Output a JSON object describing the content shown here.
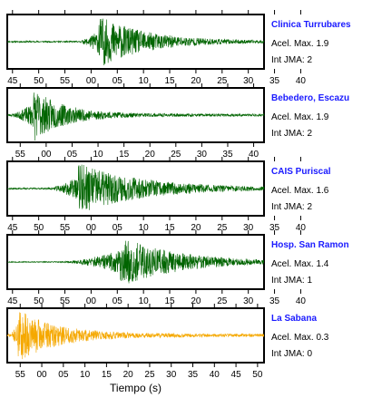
{
  "chart_data": [
    {
      "type": "line",
      "station": "Clinica Turrubares",
      "accel_label": "Acel. Max. 1.9",
      "jma_label": "Int JMA: 2",
      "color": "#006400",
      "ticks": [
        "45",
        "50",
        "55",
        "00",
        "05",
        "10",
        "15",
        "20",
        "25",
        "30",
        "35",
        "40"
      ],
      "tick_start": 45,
      "x_range": [
        44,
        93
      ],
      "onset": 57.5,
      "peak": 61.5,
      "decay": 9,
      "noise": 0.03,
      "seed": 11
    },
    {
      "type": "line",
      "station": "Bebedero, Escazu",
      "accel_label": "Acel. Max. 1.9",
      "jma_label": "Int JMA: 2",
      "color": "#006400",
      "ticks": [
        "55",
        "00",
        "05",
        "10",
        "15",
        "20",
        "25",
        "30",
        "35",
        "40"
      ],
      "tick_start": 55,
      "x_range": [
        52.5,
        102
      ],
      "onset": 53,
      "peak": 57.5,
      "decay": 6,
      "noise": 0.05,
      "seed": 23
    },
    {
      "type": "line",
      "station": "CAIS Puriscal",
      "accel_label": "Acel. Max. 1.6",
      "jma_label": "Int JMA: 2",
      "color": "#006400",
      "ticks": [
        "45",
        "50",
        "55",
        "00",
        "05",
        "10",
        "15",
        "20",
        "25",
        "30",
        "35",
        "40"
      ],
      "tick_start": 45,
      "x_range": [
        44,
        93
      ],
      "onset": 51.5,
      "peak": 57.5,
      "decay": 12,
      "noise": 0.03,
      "seed": 37
    },
    {
      "type": "line",
      "station": "Hosp. San Ramon",
      "accel_label": "Acel. Max. 1.4",
      "jma_label": "Int JMA: 1",
      "color": "#006400",
      "ticks": [
        "45",
        "50",
        "55",
        "00",
        "05",
        "10",
        "15",
        "20",
        "25",
        "30",
        "35",
        "40"
      ],
      "tick_start": 45,
      "x_range": [
        44,
        93
      ],
      "onset": 54.5,
      "peak": 65.5,
      "decay": 11,
      "noise": 0.02,
      "seed": 53
    },
    {
      "type": "line",
      "station": "La Sabana",
      "accel_label": "Acel. Max. 0.3",
      "jma_label": "Int JMA: 0",
      "color": "#f5a800",
      "ticks": [
        "55",
        "00",
        "05",
        "10",
        "15",
        "20",
        "25",
        "30",
        "35",
        "40",
        "45",
        "50"
      ],
      "tick_start": 55,
      "x_range": [
        52,
        111.5
      ],
      "onset": 52.5,
      "peak": 54.5,
      "decay": 9,
      "noise": 0.06,
      "seed": 71,
      "xlabel": "Tiempo (s)"
    }
  ]
}
